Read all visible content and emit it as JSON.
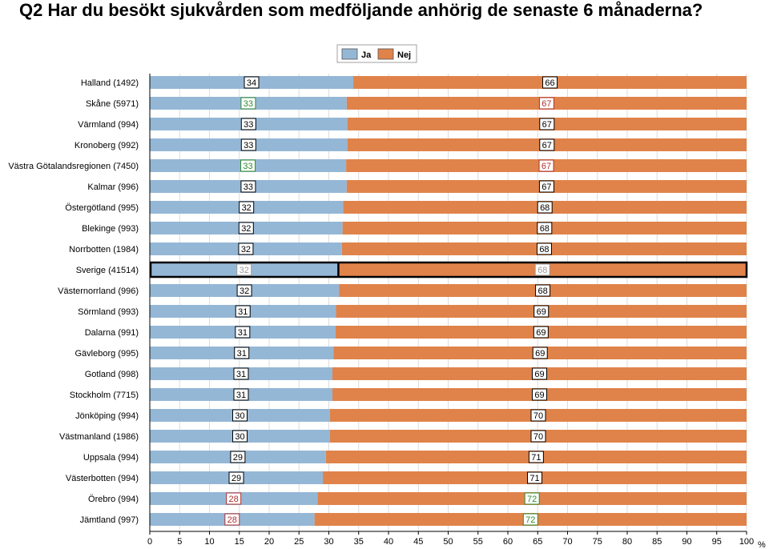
{
  "chart_data": {
    "type": "bar",
    "stacked": true,
    "orientation": "horizontal",
    "title": "Q2 Har du besökt sjukvården som medföljande anhörig de senaste 6 månaderna?",
    "xlabel": "%",
    "xlim": [
      0,
      100
    ],
    "xticks": [
      "0",
      "5",
      "10",
      "15",
      "20",
      "25",
      "30",
      "35",
      "40",
      "45",
      "50",
      "55",
      "60",
      "65",
      "70",
      "75",
      "80",
      "85",
      "90",
      "95",
      "100"
    ],
    "legend_position": "top-center",
    "colors": {
      "Ja": "#95b7d6",
      "Nej": "#e0834a"
    },
    "highlight_category": "Sverige (41514)",
    "categories": [
      "Halland (1492)",
      "Skåne (5971)",
      "Värmland (994)",
      "Kronoberg (992)",
      "Västra Götalandsregionen (7450)",
      "Kalmar (996)",
      "Östergötland (995)",
      "Blekinge (993)",
      "Norrbotten (1984)",
      "Sverige (41514)",
      "Västernorrland (996)",
      "Sörmland (993)",
      "Dalarna (991)",
      "Gävleborg (995)",
      "Gotland (998)",
      "Stockholm (7715)",
      "Jönköping (994)",
      "Västmanland (1986)",
      "Uppsala (994)",
      "Västerbotten (994)",
      "Örebro (994)",
      "Jämtland (997)"
    ],
    "series": [
      {
        "name": "Ja",
        "values": [
          34.1,
          33.0,
          33.1,
          33.1,
          32.9,
          33.0,
          32.4,
          32.3,
          32.2,
          31.6,
          31.7,
          31.2,
          31.1,
          30.8,
          30.6,
          30.6,
          30.2,
          30.2,
          29.5,
          29.0,
          28.1,
          27.6
        ],
        "labels": [
          "34",
          "33",
          "33",
          "33",
          "33",
          "33",
          "32",
          "32",
          "32",
          "32",
          "32",
          "31",
          "31",
          "31",
          "31",
          "31",
          "30",
          "30",
          "29",
          "29",
          "28",
          "28"
        ],
        "label_status": [
          "normal",
          "high",
          "normal",
          "normal",
          "high",
          "normal",
          "normal",
          "normal",
          "normal",
          "reference",
          "normal",
          "normal",
          "normal",
          "normal",
          "normal",
          "normal",
          "normal",
          "normal",
          "normal",
          "normal",
          "low",
          "low"
        ]
      },
      {
        "name": "Nej",
        "values": [
          65.9,
          67.0,
          66.9,
          66.9,
          67.1,
          67.0,
          67.6,
          67.7,
          67.8,
          68.4,
          68.3,
          68.8,
          68.9,
          69.2,
          69.4,
          69.4,
          69.8,
          69.8,
          70.5,
          71.0,
          71.9,
          72.4
        ],
        "labels": [
          "66",
          "67",
          "67",
          "67",
          "67",
          "67",
          "68",
          "68",
          "68",
          "68",
          "68",
          "69",
          "69",
          "69",
          "69",
          "69",
          "70",
          "70",
          "71",
          "71",
          "72",
          "72"
        ],
        "label_status": [
          "normal",
          "low",
          "normal",
          "normal",
          "low",
          "normal",
          "normal",
          "normal",
          "normal",
          "reference",
          "normal",
          "normal",
          "normal",
          "normal",
          "normal",
          "normal",
          "normal",
          "normal",
          "normal",
          "normal",
          "high",
          "high"
        ]
      }
    ]
  }
}
